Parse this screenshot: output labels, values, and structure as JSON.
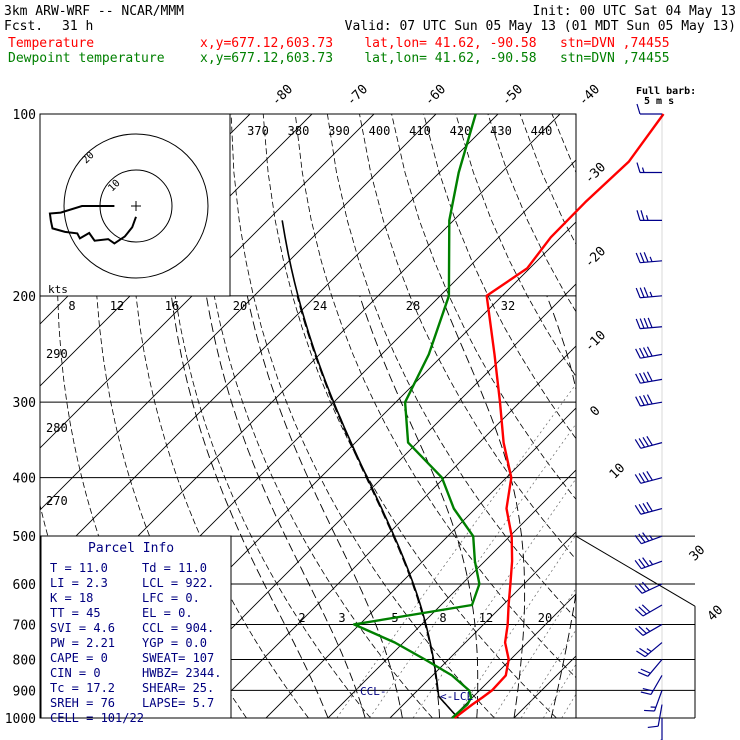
{
  "header": {
    "model": "3km ARW-WRF -- NCAR/MMM",
    "init": "Init: 00 UTC Sat 04 May 13",
    "fcst_label": "Fcst.",
    "fcst_value": "31 h",
    "valid": "Valid: 07 UTC Sun 05 May 13 (01 MDT Sun 05 May 13)",
    "temperature_label": "Temperature",
    "temperature_info": "x,y=677.12,603.73    lat,lon= 41.62, -90.58   stn=DVN ,74455",
    "dewpoint_label": "Dewpoint temperature",
    "dewpoint_info": "x,y=677.12,603.73    lat,lon= 41.62, -90.58   stn=DVN ,74455",
    "barb_title_1": "Full barb:",
    "barb_title_2": "5 m s"
  },
  "colors": {
    "temperature": "#ff0000",
    "dewpoint": "#008000",
    "parcel": "#000000",
    "info": "#000080"
  },
  "chart_data": {
    "type": "line",
    "diagram": "skew-t log-p",
    "y_axis": {
      "label": "",
      "ticks": [
        100,
        200,
        300,
        400,
        500,
        600,
        700,
        800,
        900,
        1000
      ],
      "range": [
        1000,
        100
      ],
      "scale": "log"
    },
    "x_axis": {
      "label": "",
      "range": [
        -40,
        40
      ]
    },
    "isotherm_labels_top": [
      "-80",
      "-70",
      "-60",
      "-50",
      "-40"
    ],
    "isotherm_labels_right": [
      "-30",
      "-20",
      "-10",
      "0",
      "10",
      "30",
      "40"
    ],
    "isotherm_labels_700": [
      "20",
      "30"
    ],
    "theta_labels": [
      "270",
      "280",
      "290"
    ],
    "theta_e_labels": [
      "370",
      "380",
      "390",
      "400",
      "410",
      "420",
      "430",
      "440"
    ],
    "mixing_ratio_labels_200": [
      "8",
      "12",
      "16",
      "20",
      "24",
      "28",
      "32"
    ],
    "mixing_ratio_labels_700": [
      "2",
      "3",
      "5",
      "8",
      "12",
      "20"
    ],
    "hodograph": {
      "units_label": "kts",
      "ring_labels": [
        "10",
        "20"
      ]
    },
    "annotations": {
      "ccl": "CCL-",
      "lcl": "<-LCL"
    },
    "series": [
      {
        "name": "Temperature",
        "points": [
          [
            1000,
            10.4
          ],
          [
            950,
            11.1
          ],
          [
            925,
            11.6
          ],
          [
            900,
            12.0
          ],
          [
            850,
            11.8
          ],
          [
            800,
            9.7
          ],
          [
            750,
            6.4
          ],
          [
            700,
            3.9
          ],
          [
            650,
            0.9
          ],
          [
            600,
            -2.2
          ],
          [
            550,
            -5.6
          ],
          [
            500,
            -9.7
          ],
          [
            450,
            -15.0
          ],
          [
            400,
            -19.2
          ],
          [
            350,
            -26.1
          ],
          [
            300,
            -33.2
          ],
          [
            250,
            -41.8
          ],
          [
            200,
            -52.5
          ],
          [
            180,
            -50.4
          ],
          [
            160,
            -51.6
          ],
          [
            140,
            -51.7
          ],
          [
            120,
            -51.2
          ],
          [
            100,
            -53.3
          ]
        ]
      },
      {
        "name": "Dewpoint temperature",
        "points": [
          [
            1000,
            10.0
          ],
          [
            950,
            10.3
          ],
          [
            925,
            9.8
          ],
          [
            900,
            8.3
          ],
          [
            850,
            3.1
          ],
          [
            800,
            -3.8
          ],
          [
            750,
            -11.4
          ],
          [
            700,
            -20.9
          ],
          [
            650,
            -5.0
          ],
          [
            600,
            -7.2
          ],
          [
            550,
            -11.6
          ],
          [
            500,
            -15.9
          ],
          [
            450,
            -23.5
          ],
          [
            400,
            -30.4
          ],
          [
            350,
            -41.5
          ],
          [
            300,
            -48.5
          ],
          [
            250,
            -52.4
          ],
          [
            200,
            -58.6
          ],
          [
            150,
            -70.7
          ],
          [
            125,
            -76.9
          ],
          [
            100,
            -83.6
          ]
        ]
      }
    ],
    "parcel": {
      "start": [
        1000,
        11.0
      ],
      "lcl_p": 922,
      "lapse_label": "parcel"
    },
    "wind_barbs": [
      {
        "p": 1000,
        "dir": 180,
        "spd": 5
      },
      {
        "p": 950,
        "dir": 190,
        "spd": 10
      },
      {
        "p": 900,
        "dir": 200,
        "spd": 15
      },
      {
        "p": 850,
        "dir": 210,
        "spd": 20
      },
      {
        "p": 800,
        "dir": 220,
        "spd": 20
      },
      {
        "p": 750,
        "dir": 230,
        "spd": 25
      },
      {
        "p": 700,
        "dir": 240,
        "spd": 25
      },
      {
        "p": 650,
        "dir": 240,
        "spd": 30
      },
      {
        "p": 600,
        "dir": 245,
        "spd": 30
      },
      {
        "p": 550,
        "dir": 250,
        "spd": 35
      },
      {
        "p": 500,
        "dir": 250,
        "spd": 35
      },
      {
        "p": 450,
        "dir": 255,
        "spd": 40
      },
      {
        "p": 400,
        "dir": 255,
        "spd": 40
      },
      {
        "p": 350,
        "dir": 255,
        "spd": 40
      },
      {
        "p": 300,
        "dir": 260,
        "spd": 40
      },
      {
        "p": 275,
        "dir": 260,
        "spd": 40
      },
      {
        "p": 250,
        "dir": 260,
        "spd": 40
      },
      {
        "p": 225,
        "dir": 265,
        "spd": 40
      },
      {
        "p": 200,
        "dir": 265,
        "spd": 35
      },
      {
        "p": 175,
        "dir": 265,
        "spd": 35
      },
      {
        "p": 150,
        "dir": 270,
        "spd": 25
      },
      {
        "p": 125,
        "dir": 270,
        "spd": 15
      },
      {
        "p": 100,
        "dir": 270,
        "spd": 10
      }
    ]
  },
  "parcel_info": {
    "title": "Parcel Info",
    "rows": [
      [
        "T  =    11.0",
        "Td =  11.0"
      ],
      [
        "LI =     2.3",
        "LCL =  922."
      ],
      [
        "K  =      18",
        "LFC =     0."
      ],
      [
        "TT =      45",
        "EL  =     0."
      ],
      [
        "SVI =    4.6",
        "CCL =  904."
      ],
      [
        "PW =    2.21",
        "YGP =   0.0"
      ],
      [
        "CAPE =     0",
        "SWEAT=  107"
      ],
      [
        "CIN =      0",
        "HWBZ= 2344."
      ],
      [
        "Tc =    17.2",
        "SHEAR=  25."
      ],
      [
        "SREH =    76",
        "LAPSE=   5.7"
      ],
      [
        "CELL = 101/22",
        ""
      ]
    ]
  }
}
